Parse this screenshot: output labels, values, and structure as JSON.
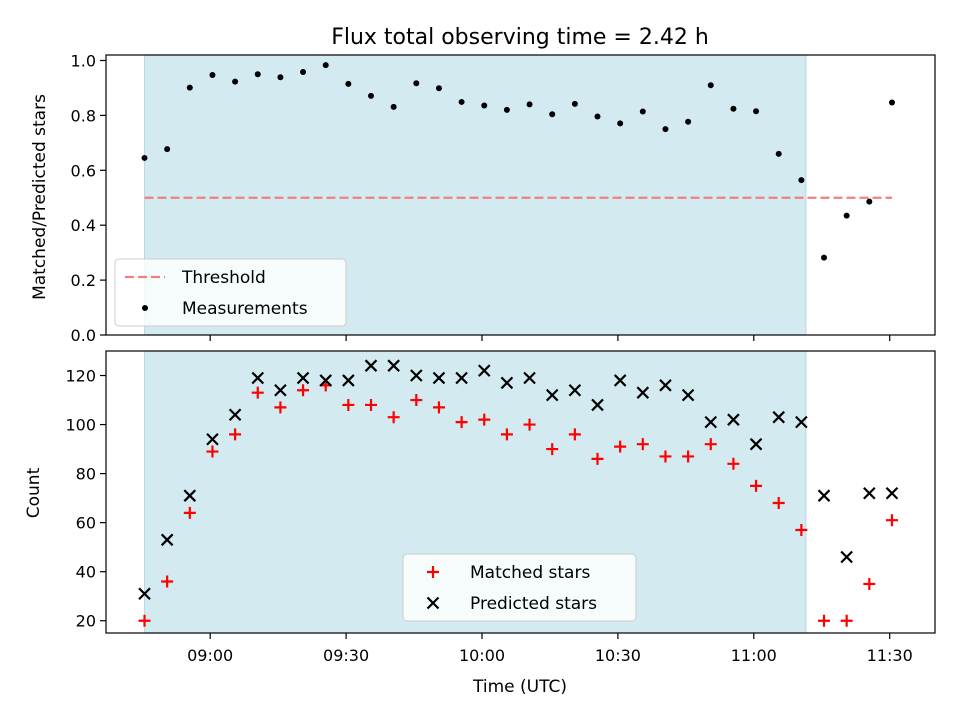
{
  "chart_data": {
    "title": "Flux total observing time = 2.42 h",
    "xlabel": "Time (UTC)",
    "x_tick_labels": [
      "09:00",
      "09:30",
      "10:00",
      "10:30",
      "11:00",
      "11:30"
    ],
    "x_ticks_minutes": [
      540,
      570,
      600,
      630,
      660,
      690
    ],
    "xlim_minutes": [
      517,
      700
    ],
    "shaded_interval_minutes": [
      525.5,
      671.5
    ],
    "shade_color": "#d3eaf0",
    "times_minutes": [
      525.5,
      530.5,
      535.5,
      540.5,
      545.5,
      550.5,
      555.5,
      560.5,
      565.5,
      570.5,
      575.5,
      580.5,
      585.5,
      590.5,
      595.5,
      600.5,
      605.5,
      610.5,
      615.5,
      620.5,
      625.5,
      630.5,
      635.5,
      640.5,
      645.5,
      650.5,
      655.5,
      660.5,
      665.5,
      670.5,
      675.5,
      680.5,
      685.5,
      690.5
    ],
    "panels": [
      {
        "type": "scatter",
        "ylabel": "Matched/Predicted stars",
        "ylim": [
          0,
          1.02
        ],
        "y_ticks": [
          0.0,
          0.2,
          0.4,
          0.6,
          0.8,
          1.0
        ],
        "y_tick_labels": [
          "0.0",
          "0.2",
          "0.4",
          "0.6",
          "0.8",
          "1.0"
        ],
        "threshold": {
          "name": "Threshold",
          "value": 0.5,
          "x_range": [
            525.5,
            690.5
          ],
          "color": "#f08080"
        },
        "series": [
          {
            "name": "Measurements",
            "marker": "dot",
            "color": "#000000",
            "values": [
              0.645,
              0.677,
              0.901,
              0.947,
              0.923,
              0.95,
              0.939,
              0.958,
              0.983,
              0.915,
              0.871,
              0.831,
              0.917,
              0.899,
              0.849,
              0.836,
              0.82,
              0.84,
              0.804,
              0.842,
              0.796,
              0.771,
              0.814,
              0.75,
              0.777,
              0.91,
              0.824,
              0.815,
              0.66,
              0.564,
              0.282,
              0.435,
              0.486,
              0.847
            ]
          }
        ],
        "legend": {
          "position": "lower-left",
          "entries": [
            "Threshold",
            "Measurements"
          ]
        }
      },
      {
        "type": "scatter",
        "ylabel": "Count",
        "ylim": [
          15,
          130
        ],
        "y_ticks": [
          20,
          40,
          60,
          80,
          100,
          120
        ],
        "y_tick_labels": [
          "20",
          "40",
          "60",
          "80",
          "100",
          "120"
        ],
        "series": [
          {
            "name": "Matched stars",
            "marker": "plus",
            "color": "#ff0000",
            "values": [
              20,
              36,
              64,
              89,
              96,
              113,
              107,
              114,
              116,
              108,
              108,
              103,
              110,
              107,
              101,
              102,
              96,
              100,
              90,
              96,
              86,
              91,
              92,
              87,
              87,
              92,
              84,
              75,
              68,
              57,
              20,
              20,
              35,
              61
            ]
          },
          {
            "name": "Predicted stars",
            "marker": "x",
            "color": "#000000",
            "values": [
              31,
              53,
              71,
              94,
              104,
              119,
              114,
              119,
              118,
              118,
              124,
              124,
              120,
              119,
              119,
              122,
              117,
              119,
              112,
              114,
              108,
              118,
              113,
              116,
              112,
              101,
              102,
              92,
              103,
              101,
              71,
              46,
              72,
              72
            ]
          }
        ],
        "legend": {
          "position": "lower-center",
          "entries": [
            "Matched stars",
            "Predicted stars"
          ]
        }
      }
    ]
  }
}
